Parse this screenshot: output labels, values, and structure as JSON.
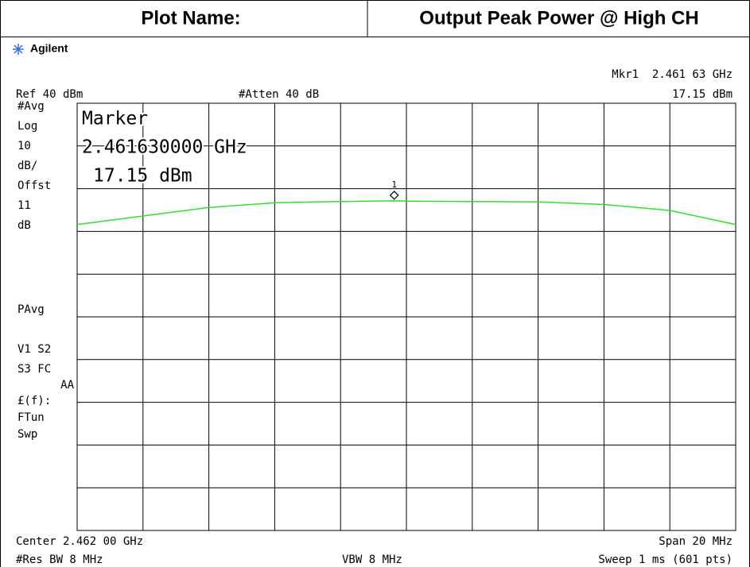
{
  "header": {
    "label": "Plot Name:",
    "value": "Output Peak Power @ High CH"
  },
  "instrument": {
    "brand": "Agilent",
    "marker_readout": [
      "Mkr1  2.461 63 GHz",
      "17.15 dBm"
    ],
    "ref": "Ref 40 dBm",
    "atten": "#Atten 40 dB",
    "side_labels": [
      "#Avg",
      "Log",
      "10",
      "dB/",
      "Offst",
      "11",
      "dB",
      "PAvg",
      "V1  S2",
      "S3  FC",
      "AA",
      "£(f):",
      "FTun",
      "Swp"
    ],
    "marker_box": [
      "Marker",
      "2.461630000 GHz",
      "17.15 dBm"
    ],
    "footer": {
      "center": "Center 2.462 00 GHz",
      "span": "Span 20 MHz",
      "rbw": "#Res BW 8 MHz",
      "vbw": "VBW 8 MHz",
      "sweep": "Sweep 1 ms (601 pts)"
    }
  },
  "chart_data": {
    "type": "line",
    "x": [
      2452,
      2454,
      2456,
      2458,
      2460,
      2461.63,
      2462,
      2464,
      2466,
      2468,
      2470,
      2472
    ],
    "series": [
      {
        "color": "#33dd33",
        "values": [
          11.6,
          13.6,
          15.6,
          16.7,
          17.0,
          17.15,
          17.1,
          17.0,
          16.9,
          16.3,
          14.9,
          11.6
        ]
      }
    ],
    "xlim": [
      2452,
      2472
    ],
    "ylim": [
      -60,
      40
    ],
    "marker": {
      "label": "1",
      "x": 2461.63,
      "y": 17.15
    }
  }
}
